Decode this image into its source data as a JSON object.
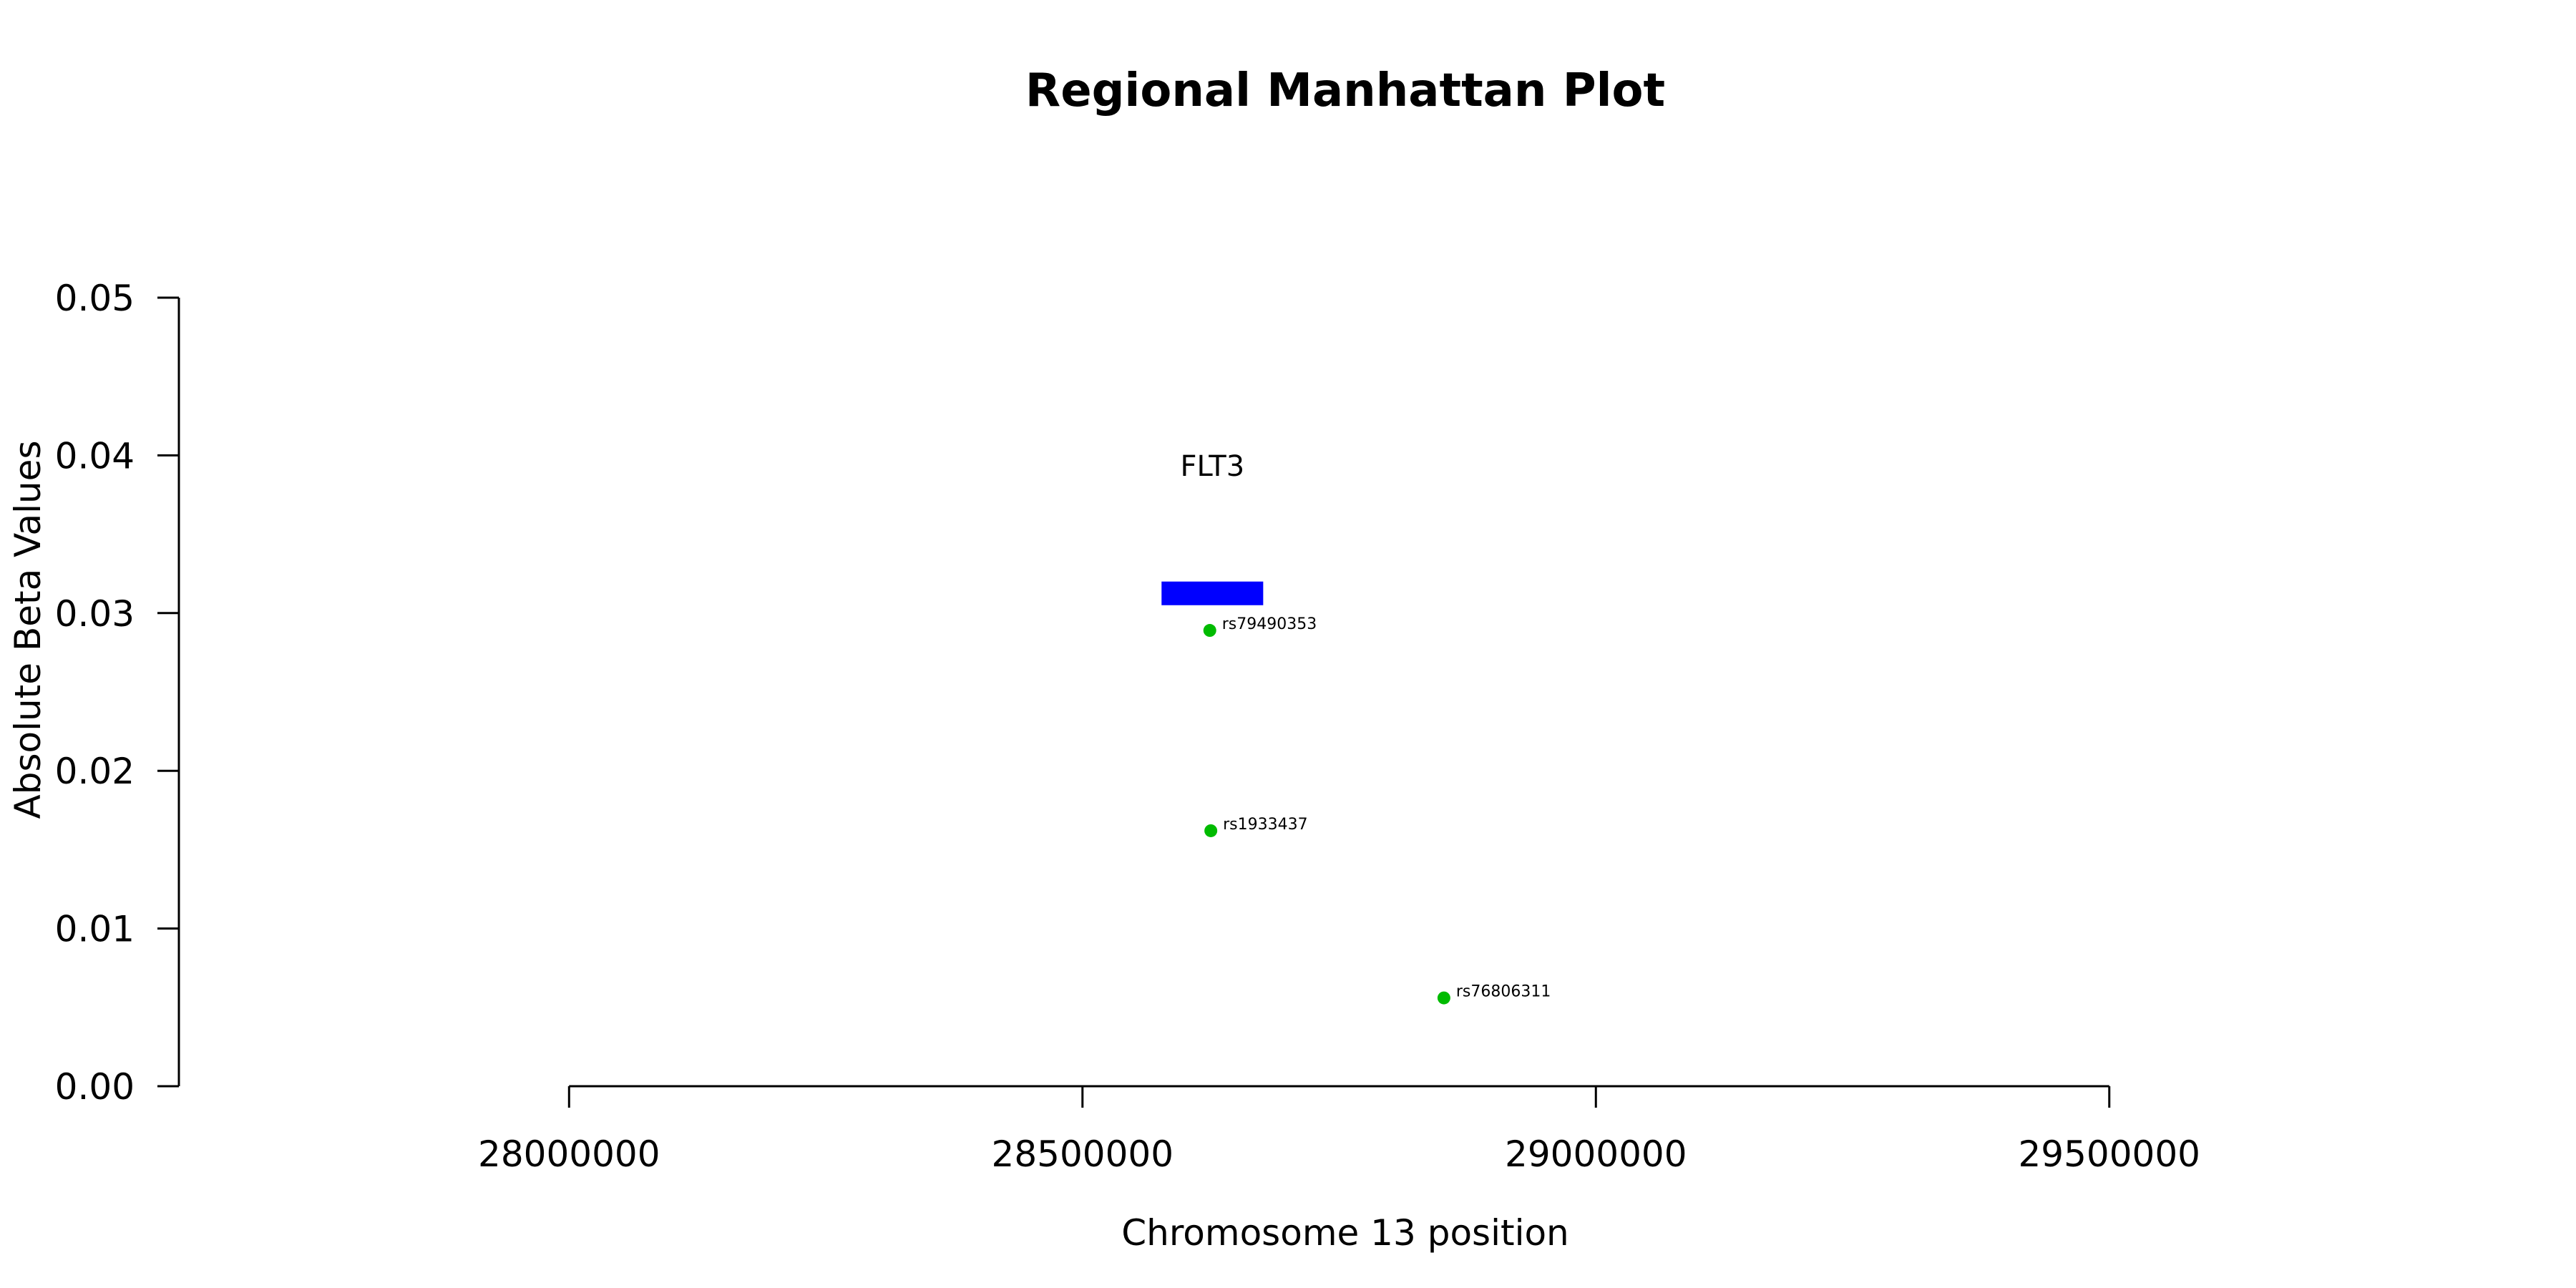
{
  "chart_data": {
    "type": "scatter",
    "title": "Regional Manhattan Plot",
    "xlabel": "Chromosome 13 position",
    "ylabel": "Absolute Beta Values",
    "xlim": [
      27620000,
      29850000
    ],
    "ylim": [
      0,
      0.05
    ],
    "x_ticks": [
      28000000,
      28500000,
      29000000,
      29500000
    ],
    "x_tick_labels": [
      "28000000",
      "28500000",
      "29000000",
      "29500000"
    ],
    "y_ticks": [
      0,
      0.01,
      0.02,
      0.03,
      0.04,
      0.05
    ],
    "y_tick_labels": [
      "0.00",
      "0.01",
      "0.02",
      "0.03",
      "0.04",
      "0.05"
    ],
    "grid": false,
    "genes": [
      {
        "name": "FLT3",
        "start": 28577000,
        "end": 28676000,
        "y_low": 0.0305,
        "y_high": 0.032,
        "label_y": 0.0387,
        "color": "#0000ff"
      }
    ],
    "series": [
      {
        "color": "#00bb00",
        "points": [
          {
            "x": 28624000,
            "y": 0.0289,
            "label": "rs79490353"
          },
          {
            "x": 28625000,
            "y": 0.0162,
            "label": "rs1933437"
          },
          {
            "x": 28852000,
            "y": 0.0056,
            "label": "rs76806311"
          }
        ]
      }
    ]
  }
}
